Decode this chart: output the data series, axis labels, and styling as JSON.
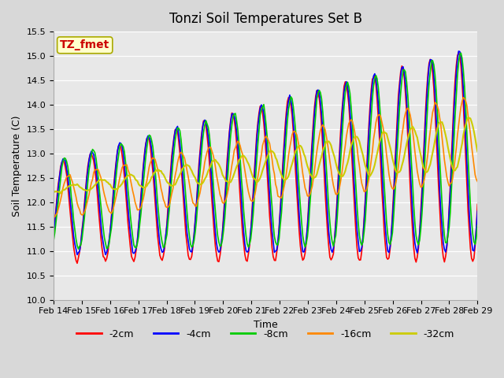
{
  "title": "Tonzi Soil Temperatures Set B",
  "xlabel": "Time",
  "ylabel": "Soil Temperature (C)",
  "ylim": [
    10.0,
    15.5
  ],
  "yticks": [
    10.0,
    10.5,
    11.0,
    11.5,
    12.0,
    12.5,
    13.0,
    13.5,
    14.0,
    14.5,
    15.0,
    15.5
  ],
  "xtick_labels": [
    "Feb 14",
    "Feb 15",
    "Feb 16",
    "Feb 17",
    "Feb 18",
    "Feb 19",
    "Feb 20",
    "Feb 21",
    "Feb 22",
    "Feb 23",
    "Feb 24",
    "Feb 25",
    "Feb 26",
    "Feb 27",
    "Feb 28",
    "Feb 29"
  ],
  "line_colors": {
    "-2cm": "#ff0000",
    "-4cm": "#0000ff",
    "-8cm": "#00cc00",
    "-16cm": "#ff8800",
    "-32cm": "#cccc00"
  },
  "legend_labels": [
    "-2cm",
    "-4cm",
    "-8cm",
    "-16cm",
    "-32cm"
  ],
  "annotation_text": "TZ_fmet",
  "annotation_color": "#cc0000",
  "annotation_bg": "#ffffcc",
  "fig_bg": "#d8d8d8",
  "plot_bg": "#e8e8e8",
  "title_fontsize": 12,
  "axis_fontsize": 9,
  "tick_fontsize": 8,
  "legend_fontsize": 9
}
